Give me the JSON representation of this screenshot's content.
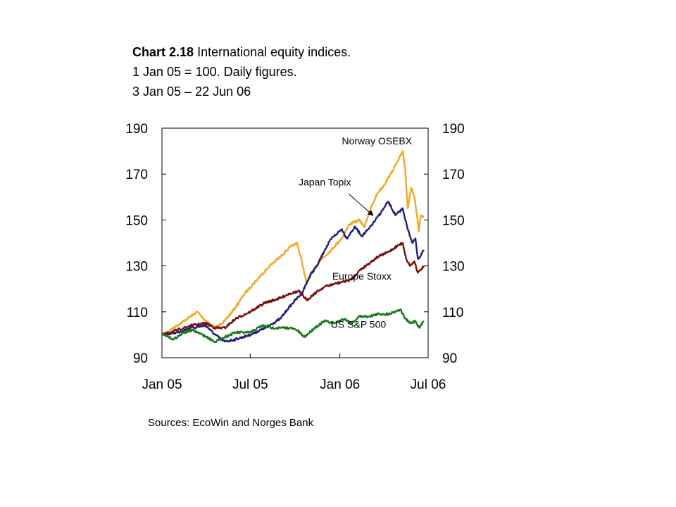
{
  "title": {
    "number": "Chart 2.18",
    "text": "International equity indices.",
    "line2": "1 Jan 05 = 100. Daily figures.",
    "line3": "3 Jan 05 – 22 Jun 06"
  },
  "source": "Sources: EcoWin and Norges Bank",
  "chart_data": {
    "type": "line",
    "x_unit": "date",
    "x_ticks": [
      {
        "date": "2005-01-01",
        "label": "Jan 05"
      },
      {
        "date": "2005-07-01",
        "label": "Jul 05"
      },
      {
        "date": "2006-01-01",
        "label": "Jan 06"
      },
      {
        "date": "2006-07-01",
        "label": "Jul 06"
      }
    ],
    "xlim": [
      "2005-01-01",
      "2006-07-01"
    ],
    "ylim": [
      90,
      190
    ],
    "y_ticks": [
      90,
      110,
      130,
      150,
      170,
      190
    ],
    "y_axes": "left and right",
    "grid": false,
    "series": [
      {
        "name": "Norway OSEBX",
        "color": "#F5A623",
        "points": [
          [
            "2005-01-03",
            100
          ],
          [
            "2005-02-01",
            104
          ],
          [
            "2005-03-01",
            108
          ],
          [
            "2005-03-15",
            110
          ],
          [
            "2005-04-01",
            106
          ],
          [
            "2005-04-20",
            103
          ],
          [
            "2005-05-10",
            106
          ],
          [
            "2005-06-01",
            112
          ],
          [
            "2005-06-20",
            118
          ],
          [
            "2005-07-15",
            124
          ],
          [
            "2005-08-10",
            130
          ],
          [
            "2005-09-01",
            134
          ],
          [
            "2005-09-20",
            138
          ],
          [
            "2005-10-05",
            140
          ],
          [
            "2005-10-15",
            132
          ],
          [
            "2005-10-25",
            122
          ],
          [
            "2005-11-05",
            127
          ],
          [
            "2005-11-20",
            132
          ],
          [
            "2005-12-10",
            136
          ],
          [
            "2006-01-05",
            142
          ],
          [
            "2006-01-20",
            148
          ],
          [
            "2006-02-10",
            150
          ],
          [
            "2006-02-20",
            147
          ],
          [
            "2006-03-05",
            155
          ],
          [
            "2006-03-20",
            162
          ],
          [
            "2006-04-01",
            165
          ],
          [
            "2006-04-15",
            170
          ],
          [
            "2006-05-01",
            176
          ],
          [
            "2006-05-10",
            180
          ],
          [
            "2006-05-15",
            172
          ],
          [
            "2006-05-20",
            155
          ],
          [
            "2006-05-27",
            164
          ],
          [
            "2006-06-03",
            160
          ],
          [
            "2006-06-08",
            152
          ],
          [
            "2006-06-12",
            145
          ],
          [
            "2006-06-16",
            152
          ],
          [
            "2006-06-22",
            151
          ]
        ]
      },
      {
        "name": "Japan Topix",
        "color": "#1F1F7A",
        "points": [
          [
            "2005-01-03",
            100
          ],
          [
            "2005-02-01",
            101
          ],
          [
            "2005-03-01",
            103
          ],
          [
            "2005-04-01",
            104
          ],
          [
            "2005-04-20",
            100
          ],
          [
            "2005-05-10",
            97
          ],
          [
            "2005-06-01",
            98
          ],
          [
            "2005-07-01",
            100
          ],
          [
            "2005-08-01",
            103
          ],
          [
            "2005-09-01",
            107
          ],
          [
            "2005-09-15",
            111
          ],
          [
            "2005-10-01",
            115
          ],
          [
            "2005-10-15",
            118
          ],
          [
            "2005-11-01",
            126
          ],
          [
            "2005-11-15",
            130
          ],
          [
            "2005-12-01",
            137
          ],
          [
            "2005-12-15",
            142
          ],
          [
            "2006-01-05",
            146
          ],
          [
            "2006-01-15",
            142
          ],
          [
            "2006-02-01",
            147
          ],
          [
            "2006-02-15",
            143
          ],
          [
            "2006-03-01",
            146
          ],
          [
            "2006-03-15",
            150
          ],
          [
            "2006-04-01",
            155
          ],
          [
            "2006-04-10",
            158
          ],
          [
            "2006-04-25",
            152
          ],
          [
            "2006-05-10",
            155
          ],
          [
            "2006-05-20",
            146
          ],
          [
            "2006-05-30",
            140
          ],
          [
            "2006-06-05",
            142
          ],
          [
            "2006-06-10",
            133
          ],
          [
            "2006-06-15",
            134
          ],
          [
            "2006-06-22",
            137
          ]
        ]
      },
      {
        "name": "Europe Stoxx",
        "color": "#7A1010",
        "points": [
          [
            "2005-01-03",
            100
          ],
          [
            "2005-02-01",
            102
          ],
          [
            "2005-03-01",
            104
          ],
          [
            "2005-04-01",
            105
          ],
          [
            "2005-04-20",
            103
          ],
          [
            "2005-05-10",
            103
          ],
          [
            "2005-06-01",
            107
          ],
          [
            "2005-07-01",
            110
          ],
          [
            "2005-08-01",
            114
          ],
          [
            "2005-09-01",
            116
          ],
          [
            "2005-09-20",
            118
          ],
          [
            "2005-10-10",
            119
          ],
          [
            "2005-10-25",
            115
          ],
          [
            "2005-11-10",
            118
          ],
          [
            "2005-12-01",
            121
          ],
          [
            "2006-01-05",
            123
          ],
          [
            "2006-01-25",
            124
          ],
          [
            "2006-02-10",
            128
          ],
          [
            "2006-03-01",
            131
          ],
          [
            "2006-03-20",
            134
          ],
          [
            "2006-04-10",
            136
          ],
          [
            "2006-05-01",
            139
          ],
          [
            "2006-05-10",
            140
          ],
          [
            "2006-05-17",
            133
          ],
          [
            "2006-05-25",
            130
          ],
          [
            "2006-06-03",
            132
          ],
          [
            "2006-06-10",
            127
          ],
          [
            "2006-06-15",
            128
          ],
          [
            "2006-06-22",
            130
          ]
        ]
      },
      {
        "name": "US S&P 500",
        "color": "#1A7A1A",
        "points": [
          [
            "2005-01-03",
            100
          ],
          [
            "2005-01-25",
            98
          ],
          [
            "2005-02-15",
            101
          ],
          [
            "2005-03-05",
            102
          ],
          [
            "2005-03-25",
            100
          ],
          [
            "2005-04-20",
            97
          ],
          [
            "2005-05-10",
            99
          ],
          [
            "2005-06-01",
            101
          ],
          [
            "2005-07-01",
            101
          ],
          [
            "2005-07-25",
            104
          ],
          [
            "2005-08-15",
            103
          ],
          [
            "2005-09-01",
            103
          ],
          [
            "2005-09-20",
            103
          ],
          [
            "2005-10-05",
            102
          ],
          [
            "2005-10-20",
            99
          ],
          [
            "2005-11-10",
            103
          ],
          [
            "2005-12-01",
            106
          ],
          [
            "2005-12-20",
            105
          ],
          [
            "2006-01-10",
            107
          ],
          [
            "2006-01-25",
            105
          ],
          [
            "2006-02-10",
            108
          ],
          [
            "2006-03-01",
            108
          ],
          [
            "2006-03-20",
            109
          ],
          [
            "2006-04-10",
            109
          ],
          [
            "2006-05-05",
            111
          ],
          [
            "2006-05-15",
            107
          ],
          [
            "2006-05-25",
            105
          ],
          [
            "2006-06-05",
            106
          ],
          [
            "2006-06-13",
            103
          ],
          [
            "2006-06-22",
            106
          ]
        ]
      }
    ],
    "annotations": [
      {
        "text": "Norway OSEBX",
        "x": "2006-03-18",
        "y": 183
      },
      {
        "text": "Japan Topix",
        "x": "2005-12-01",
        "y": 165,
        "arrow_to": [
          "2006-03-10",
          152
        ]
      },
      {
        "text": "Europe Stoxx",
        "x": "2006-02-15",
        "y": 124
      },
      {
        "text": "US S&P 500",
        "x": "2006-02-08",
        "y": 103
      }
    ]
  }
}
